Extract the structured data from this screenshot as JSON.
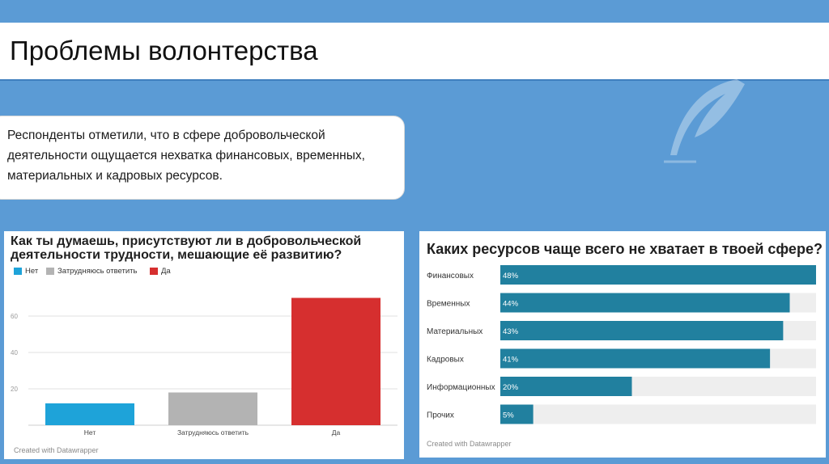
{
  "slide": {
    "title": "Проблемы волонтерства",
    "intro_text": "Респонденты отметили, что в сфере добровольческой деятельности ощущается нехватка финансовых, временных, материальных и кадровых ресурсов.",
    "background_color": "#5b9bd5",
    "decoration_icon": "feather-quill-icon"
  },
  "chart_data": [
    {
      "type": "bar",
      "title": "Как ты думаешь, присутствуют ли в добровольческой деятельности трудности, мешающие её развитию?",
      "categories": [
        "Нет",
        "Затрудняюсь ответить",
        "Да"
      ],
      "values": [
        12,
        18,
        70
      ],
      "colors": [
        "#1ea3d9",
        "#b3b3b3",
        "#d62f2f"
      ],
      "legend": [
        "Нет",
        "Затрудняюсь ответить",
        "Да"
      ],
      "legend_position": "top-left",
      "yticks": [
        20,
        40,
        60
      ],
      "ylim": [
        0,
        80
      ],
      "grid": true,
      "credit": "Created with Datawrapper"
    },
    {
      "type": "bar",
      "orientation": "horizontal",
      "title": "Каких ресурсов чаще всего не хватает в твоей сфере?",
      "categories": [
        "Финансовых",
        "Временных",
        "Материальных",
        "Кадровых",
        "Информационных",
        "Прочих"
      ],
      "values": [
        48,
        44,
        43,
        41,
        20,
        5
      ],
      "value_labels": [
        "48%",
        "44%",
        "43%",
        "41%",
        "20%",
        "5%"
      ],
      "xlim": [
        0,
        48
      ],
      "bar_color": "#21809f",
      "track_color": "#eeeeee",
      "credit": "Created with Datawrapper"
    }
  ]
}
